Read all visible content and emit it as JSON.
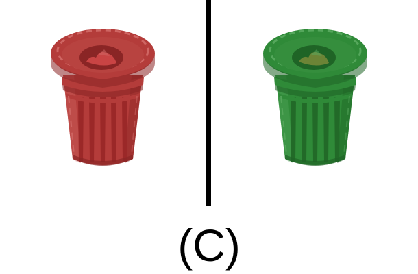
{
  "caption": "(C)",
  "bins": [
    {
      "id": "left",
      "object": "trash-can",
      "color_name": "red",
      "colors": {
        "body": "#b43c3a",
        "dark": "#8a2525",
        "light": "#d26a68",
        "slat_dark": "#9b2828",
        "trash": "#d44a4a"
      }
    },
    {
      "id": "right",
      "object": "trash-can",
      "color_name": "green",
      "colors": {
        "body": "#2f8a38",
        "dark": "#1f6426",
        "light": "#5aaa60",
        "slat_dark": "#226a28",
        "trash": "#7a8a3a"
      }
    }
  ],
  "divider_color": "#000000"
}
